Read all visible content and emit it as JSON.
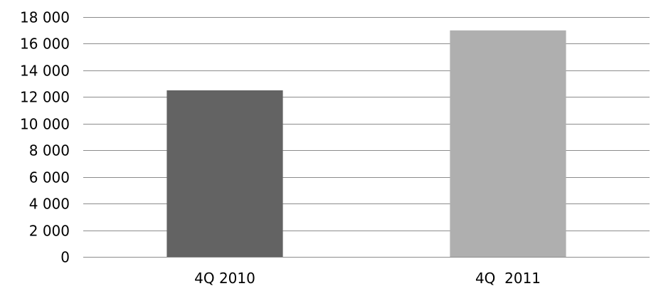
{
  "chart_data": {
    "type": "bar",
    "categories": [
      "4Q 2010",
      "4Q  2011"
    ],
    "values": [
      12500,
      17000
    ],
    "colors": [
      "#636363",
      "#afafaf"
    ],
    "ylim": [
      0,
      18000
    ],
    "yticks": [
      0,
      2000,
      4000,
      6000,
      8000,
      10000,
      12000,
      14000,
      16000,
      18000
    ],
    "ytick_labels": [
      "0",
      "2 000",
      "4 000",
      "6 000",
      "8 000",
      "10 000",
      "12 000",
      "14 000",
      "16 000",
      "18 000"
    ],
    "grid": true,
    "legend": "none",
    "title": "",
    "xlabel": "",
    "ylabel": ""
  }
}
